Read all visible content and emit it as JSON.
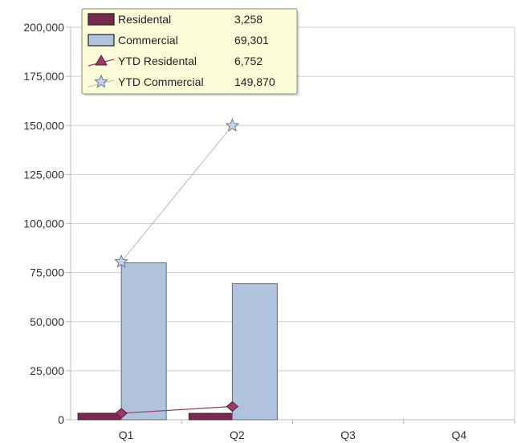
{
  "chart_data": {
    "type": "bar",
    "categories": [
      "Q1",
      "Q2",
      "Q3",
      "Q4"
    ],
    "ylim": [
      0,
      200000
    ],
    "yticks": [
      0,
      25000,
      50000,
      75000,
      100000,
      125000,
      150000,
      175000,
      200000
    ],
    "ytick_labels": [
      "0",
      "25,000",
      "50,000",
      "75,000",
      "100,000",
      "125,000",
      "150,000",
      "175,000",
      "200,000"
    ],
    "grid": true,
    "series": [
      {
        "name": "Residental",
        "kind": "bar",
        "color": "#7a2a4e",
        "values": [
          3300,
          3258,
          null,
          null
        ]
      },
      {
        "name": "Commercial",
        "kind": "bar",
        "color": "#b0c2dc",
        "values": [
          80000,
          69301,
          null,
          null
        ]
      },
      {
        "name": "YTD Residental",
        "kind": "line",
        "marker": "triangle",
        "color": "#9a3a66",
        "values": [
          3300,
          6752,
          null,
          null
        ]
      },
      {
        "name": "YTD Commercial",
        "kind": "line",
        "marker": "star",
        "color": "#b0c2dc",
        "values": [
          80500,
          149870,
          null,
          null
        ]
      }
    ],
    "tooltip": {
      "category": "Q2",
      "entries": [
        {
          "series": "Residental",
          "value": "3,258"
        },
        {
          "series": "Commercial",
          "value": "69,301"
        },
        {
          "series": "YTD Residental",
          "value": "6,752"
        },
        {
          "series": "YTD Commercial",
          "value": "149,870"
        }
      ]
    }
  }
}
